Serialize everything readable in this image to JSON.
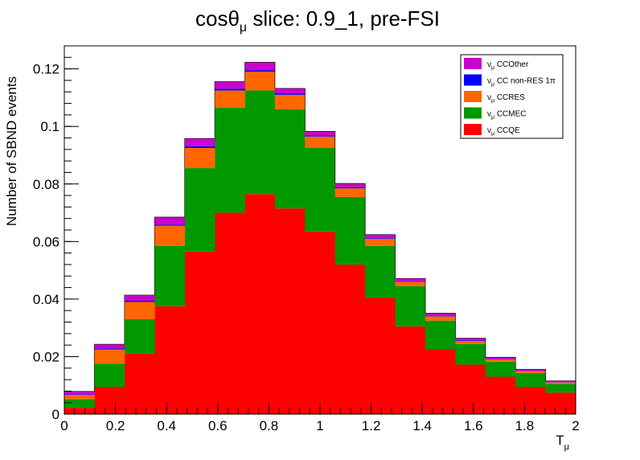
{
  "chart_data": {
    "type": "bar",
    "stacked": true,
    "title_main": "cosθ",
    "title_sub": "μ",
    "title_rest": " slice: 0.9_1, pre-FSI",
    "ylabel": "Number of SBND events",
    "xlabel_main": "T",
    "xlabel_sub": "μ",
    "xlim": [
      0,
      2
    ],
    "ylim": [
      0,
      0.128
    ],
    "bin_edges": [
      0,
      0.1176,
      0.2353,
      0.3529,
      0.4706,
      0.5882,
      0.7059,
      0.8235,
      0.9412,
      1.0588,
      1.1765,
      1.2941,
      1.4118,
      1.5294,
      1.6471,
      1.7647,
      1.8824,
      2.0
    ],
    "x_ticks": [
      {
        "value": 0,
        "label": "0"
      },
      {
        "value": 0.2,
        "label": "0.2"
      },
      {
        "value": 0.4,
        "label": "0.4"
      },
      {
        "value": 0.6,
        "label": "0.6"
      },
      {
        "value": 0.8,
        "label": "0.8"
      },
      {
        "value": 1.0,
        "label": "1"
      },
      {
        "value": 1.2,
        "label": "1.2"
      },
      {
        "value": 1.4,
        "label": "1.4"
      },
      {
        "value": 1.6,
        "label": "1.6"
      },
      {
        "value": 1.8,
        "label": "1.8"
      },
      {
        "value": 2.0,
        "label": "2"
      }
    ],
    "y_ticks": [
      {
        "value": 0,
        "label": "0"
      },
      {
        "value": 0.02,
        "label": "0.02"
      },
      {
        "value": 0.04,
        "label": "0.04"
      },
      {
        "value": 0.06,
        "label": "0.06"
      },
      {
        "value": 0.08,
        "label": "0.08"
      },
      {
        "value": 0.1,
        "label": "0.1"
      },
      {
        "value": 0.12,
        "label": "0.12"
      }
    ],
    "series": [
      {
        "name_prefix": "ν",
        "name_sub": "μ",
        "name_rest": " CCQE",
        "color": "#ff0000",
        "values": [
          0.0022,
          0.0095,
          0.021,
          0.0375,
          0.0565,
          0.07,
          0.0765,
          0.0715,
          0.0635,
          0.052,
          0.0405,
          0.0305,
          0.0225,
          0.0172,
          0.013,
          0.0095,
          0.0075
        ]
      },
      {
        "name_prefix": "ν",
        "name_sub": "μ",
        "name_rest": " CCMEC",
        "color": "#009900",
        "values": [
          0.003,
          0.008,
          0.012,
          0.021,
          0.029,
          0.0365,
          0.036,
          0.0345,
          0.029,
          0.0235,
          0.018,
          0.014,
          0.01,
          0.0072,
          0.0052,
          0.0048,
          0.003
        ]
      },
      {
        "name_prefix": "ν",
        "name_sub": "μ",
        "name_rest": " CCRES",
        "color": "#ff6600",
        "values": [
          0.0015,
          0.005,
          0.006,
          0.007,
          0.007,
          0.006,
          0.0065,
          0.005,
          0.004,
          0.003,
          0.0025,
          0.0015,
          0.0015,
          0.001,
          0.0008,
          0.0006,
          0.0005
        ]
      },
      {
        "name_prefix": "ν",
        "name_sub": "μ",
        "name_rest": " CC non-RES 1π",
        "color": "#0000ff",
        "values": [
          0.0002,
          0.0003,
          0.0004,
          0.0004,
          0.0006,
          0.0006,
          0.0005,
          0.0005,
          0.0004,
          0.0004,
          0.0003,
          0.0002,
          0.0002,
          0.0002,
          0.0001,
          0.0001,
          0.0001
        ]
      },
      {
        "name_prefix": "ν",
        "name_sub": "μ",
        "name_rest": " CCOther",
        "color": "#cc00cc",
        "values": [
          0.001,
          0.0015,
          0.002,
          0.0026,
          0.0027,
          0.0025,
          0.0028,
          0.0017,
          0.0014,
          0.0013,
          0.0011,
          0.001,
          0.0009,
          0.0008,
          0.0007,
          0.0006,
          0.0005
        ]
      }
    ],
    "legend_order": [
      4,
      3,
      2,
      1,
      0
    ],
    "legend_position": "top-right"
  }
}
